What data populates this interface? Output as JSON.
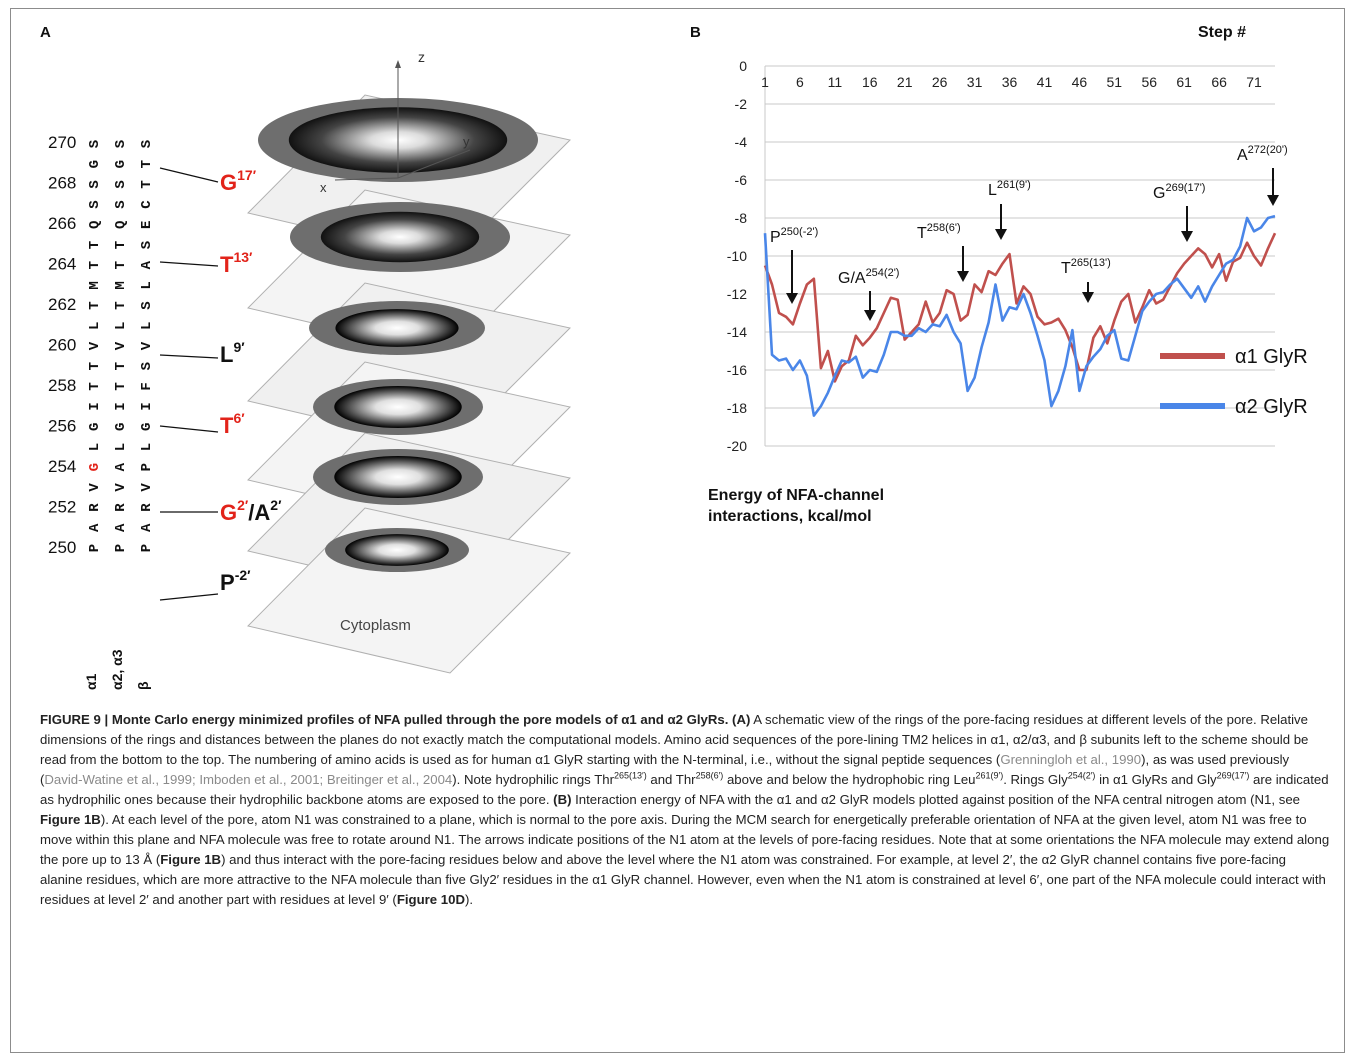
{
  "panel_a": {
    "label": "A",
    "axes": {
      "z": "z",
      "y": "y",
      "x": "x"
    },
    "cytoplasm": "Cytoplasm",
    "numbers": [
      "270",
      "268",
      "266",
      "264",
      "262",
      "260",
      "258",
      "256",
      "254",
      "252",
      "250"
    ],
    "seq_alpha1": "PARVGLGITTVLTMTTQSSGS",
    "seq_alpha23": "PARVALGITTVLTMTTQSSGS",
    "seq_beta": "PARVPLGIFSVLSLASECTTS",
    "col_labels": [
      "α1",
      "α2, α3",
      "β"
    ],
    "rings": [
      {
        "base": "G",
        "sup": "17′",
        "sep": "",
        "base2": "",
        "sup2": "",
        "color": "#e2231a"
      },
      {
        "base": "T",
        "sup": "13′",
        "sep": "",
        "base2": "",
        "sup2": "",
        "color": "#e2231a"
      },
      {
        "base": "L",
        "sup": "9′",
        "sep": "",
        "base2": "",
        "sup2": "",
        "color": "#111111"
      },
      {
        "base": "T",
        "sup": "6′",
        "sep": "",
        "base2": "",
        "sup2": "",
        "color": "#e2231a"
      },
      {
        "base": "G",
        "sup": "2′",
        "sep": "/",
        "base2": "A",
        "sup2": "2′",
        "color": "#e2231a"
      },
      {
        "base": "P",
        "sup": "-2′",
        "sep": "",
        "base2": "",
        "sup2": "",
        "color": "#111111"
      }
    ]
  },
  "panel_b": {
    "label": "B",
    "step_label": "Step #",
    "y_ticks": [
      "0",
      "-2",
      "-4",
      "-6",
      "-8",
      "-10",
      "-12",
      "-14",
      "-16",
      "-18",
      "-20"
    ],
    "x_ticks": [
      "1",
      "6",
      "11",
      "16",
      "21",
      "26",
      "31",
      "36",
      "41",
      "46",
      "51",
      "56",
      "61",
      "66",
      "71"
    ],
    "ylabel_line1": "Energy of NFA-channel",
    "ylabel_line2": "interactions, kcal/mol",
    "annotations": [
      {
        "base": "P",
        "sup": "250(-2')"
      },
      {
        "base": "G/A",
        "sup": "254(2')"
      },
      {
        "base": "T",
        "sup": "258(6')"
      },
      {
        "base": "L",
        "sup": "261(9')"
      },
      {
        "base": "T",
        "sup": "265(13')"
      },
      {
        "base": "G",
        "sup": "269(17')"
      },
      {
        "base": "A",
        "sup": "272(20')"
      }
    ]
  },
  "chart_data": {
    "type": "line",
    "xlabel": "Step #",
    "ylabel": "Energy of NFA-channel interactions, kcal/mol",
    "xlim": [
      1,
      74
    ],
    "ylim": [
      -20,
      0
    ],
    "x_axis_position": "top",
    "grid": "horizontal",
    "legend_position": "right",
    "series": [
      {
        "name": "α1 GlyR",
        "color": "#c0504d",
        "x": [
          1,
          2,
          3,
          4,
          5,
          6,
          7,
          8,
          9,
          10,
          11,
          12,
          13,
          14,
          15,
          16,
          17,
          18,
          19,
          20,
          21,
          22,
          23,
          24,
          25,
          26,
          27,
          28,
          29,
          30,
          31,
          32,
          33,
          34,
          35,
          36,
          37,
          38,
          39,
          40,
          41,
          42,
          43,
          44,
          45,
          46,
          47,
          48,
          49,
          50,
          51,
          52,
          53,
          54,
          55,
          56,
          57,
          58,
          59,
          60,
          61,
          62,
          63,
          64,
          65,
          66,
          67,
          68,
          69,
          70,
          71,
          72,
          73,
          74
        ],
        "values": [
          -10.5,
          -11.5,
          -13,
          -13.2,
          -13.6,
          -12.5,
          -11.5,
          -11.2,
          -15.9,
          -15.0,
          -16.6,
          -15.8,
          -15.5,
          -14.2,
          -14.7,
          -14.3,
          -13.8,
          -13.0,
          -12.2,
          -12.3,
          -14.4,
          -14.0,
          -13.6,
          -12.4,
          -13.5,
          -13.0,
          -11.8,
          -12.0,
          -13.4,
          -13.1,
          -11.5,
          -11.9,
          -10.8,
          -11.0,
          -10.4,
          -9.9,
          -12.5,
          -11.6,
          -12.0,
          -13.2,
          -13.6,
          -13.5,
          -13.3,
          -13.9,
          -14.8,
          -16.0,
          -16.0,
          -14.3,
          -13.7,
          -14.6,
          -13.4,
          -12.4,
          -12.0,
          -13.5,
          -12.7,
          -11.8,
          -12.5,
          -12.3,
          -11.6,
          -10.9,
          -10.4,
          -10.0,
          -9.6,
          -9.9,
          -10.6,
          -9.9,
          -11.3,
          -10.3,
          -10.1,
          -9.3,
          -10.0,
          -10.5,
          -9.6,
          -8.8
        ]
      },
      {
        "name": "α2 GlyR",
        "color": "#4a86e8",
        "x": [
          1,
          2,
          3,
          4,
          5,
          6,
          7,
          8,
          9,
          10,
          11,
          12,
          13,
          14,
          15,
          16,
          17,
          18,
          19,
          20,
          21,
          22,
          23,
          24,
          25,
          26,
          27,
          28,
          29,
          30,
          31,
          32,
          33,
          34,
          35,
          36,
          37,
          38,
          39,
          40,
          41,
          42,
          43,
          44,
          45,
          46,
          47,
          48,
          49,
          50,
          51,
          52,
          53,
          54,
          55,
          56,
          57,
          58,
          59,
          60,
          61,
          62,
          63,
          64,
          65,
          66,
          67,
          68,
          69,
          70,
          71,
          72,
          73,
          74
        ],
        "values": [
          -8.8,
          -15.2,
          -15.5,
          -15.4,
          -16.0,
          -15.5,
          -16.3,
          -18.4,
          -17.9,
          -17.2,
          -16.3,
          -15.5,
          -15.6,
          -15.3,
          -16.4,
          -16.0,
          -16.1,
          -15.2,
          -14.0,
          -14.0,
          -14.2,
          -14.2,
          -13.8,
          -14.0,
          -13.6,
          -13.7,
          -13.1,
          -14.0,
          -14.6,
          -17.1,
          -16.4,
          -14.8,
          -13.5,
          -11.5,
          -13.4,
          -12.7,
          -12.8,
          -12.0,
          -13.0,
          -14.2,
          -15.5,
          -17.9,
          -17.1,
          -15.8,
          -13.9,
          -17.1,
          -15.8,
          -15.3,
          -14.9,
          -14.2,
          -13.9,
          -15.4,
          -15.5,
          -14.2,
          -12.9,
          -12.4,
          -12.0,
          -11.9,
          -11.5,
          -11.2,
          -11.7,
          -12.2,
          -11.6,
          -12.4,
          -11.6,
          -11.0,
          -10.4,
          -10.2,
          -9.5,
          -8.0,
          -8.7,
          -8.5,
          -8.0,
          -7.9
        ]
      }
    ]
  },
  "caption": {
    "figure": "FIGURE 9 | Monte Carlo energy minimized profiles of NFA pulled through the pore models of α1 and α2 GlyRs. (A)",
    "t1": " A schematic view of the rings of the pore-facing residues at different levels of the pore. Relative dimensions of the rings and distances between the planes do not exactly match the computational models. Amino acid sequences of the pore-lining TM2 helices in α1, α2/α3, and β subunits left to the scheme should be read from the bottom to the top. The numbering of amino acids is used as for human α1 GlyR starting with the N-terminal, i.e., without the signal peptide sequences (",
    "ref1": "Grenningloh et al., 1990",
    "t2": "), as was used previously (",
    "ref2": "David-Watine et al., 1999; Imboden et al., 2001; Breitinger et al., 2004",
    "t3": "). Note hydrophilic rings Thr",
    "s1": "265(13′)",
    "t4": " and Thr",
    "s2": "258(6′)",
    "t5": " above and below the hydrophobic ring Leu",
    "s3": "261(9′)",
    "t6": ". Rings Gly",
    "s4": "254(2′)",
    "t7": " in α1 GlyRs and Gly",
    "s5": "269(17′)",
    "t8": " are indicated as hydrophilic ones because their hydrophilic backbone atoms are exposed to the pore. ",
    "b": "(B)",
    "t9": " Interaction energy of NFA with the α1 and α2 GlyR models plotted against position of the NFA central nitrogen atom (N1, see ",
    "f1": "Figure 1B",
    "t10": "). At each level of the pore, atom N1 was constrained to a plane, which is normal to the pore axis. During the MCM search for energetically preferable orientation of NFA at the given level, atom N1 was free to move within this plane and NFA molecule was free to rotate around N1. The arrows indicate positions of the N1 atom at the levels of pore-facing residues. Note that at some orientations the NFA molecule may extend along the pore up to 13 Å (",
    "f2": "Figure 1B",
    "t11": ") and thus interact with the pore-facing residues below and above the level where the N1 atom was constrained. For example, at level 2′, the α2 GlyR channel contains five pore-facing alanine residues, which are more attractive to the NFA molecule than five Gly2′ residues in the α1 GlyR channel. However, even when the N1 atom is constrained at level 6′, one part of the NFA molecule could interact with residues at level 2′ and another part with residues at level 9′ (",
    "f3": "Figure 10D",
    "t12": ")."
  }
}
